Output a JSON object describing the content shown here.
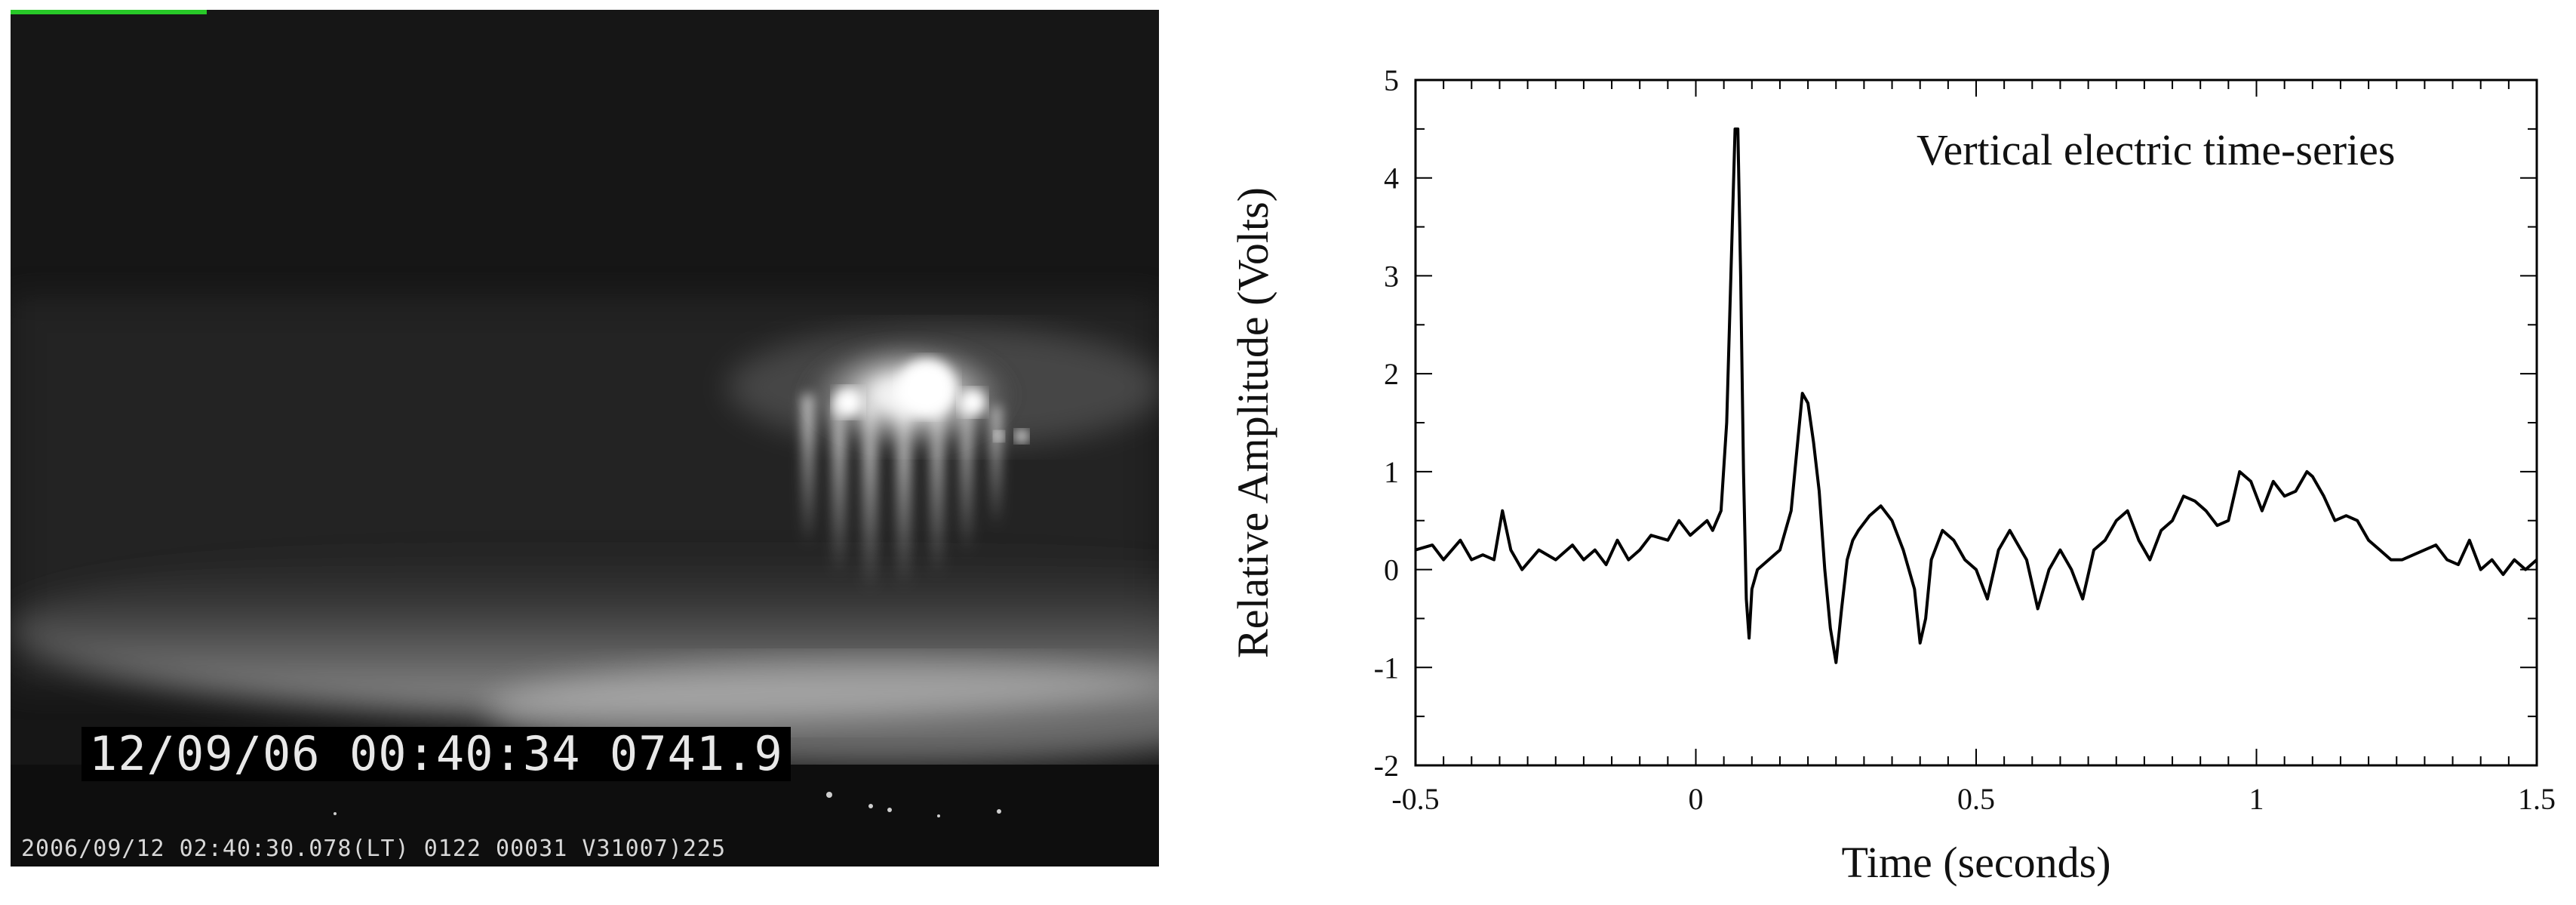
{
  "photo": {
    "overlay_main": "12/09/06 00:40:34 0741.9",
    "overlay_footer": "2006/09/12 02:40:30.078(LT) 0122  00031 V31007)225",
    "colors": {
      "sky": "#151515",
      "sprite": "#ffffff",
      "osd_background": "#000000"
    }
  },
  "chart_data": {
    "type": "line",
    "annotation": "Vertical electric time-series",
    "xlabel": "Time (seconds)",
    "ylabel": "Relative Amplitude (Volts)",
    "xlim": [
      -0.5,
      1.5
    ],
    "ylim": [
      -2,
      5
    ],
    "xticks": [
      "-0.5",
      "0",
      "0.5",
      "1",
      "1.5"
    ],
    "yticks": [
      "-2",
      "-1",
      "0",
      "1",
      "2",
      "3",
      "4",
      "5"
    ],
    "grid": false,
    "line_color": "#000000",
    "series": [
      {
        "x": [
          -0.5,
          -0.47,
          -0.45,
          -0.42,
          -0.4,
          -0.38,
          -0.36,
          -0.345,
          -0.33,
          -0.31,
          -0.28,
          -0.25,
          -0.22,
          -0.2,
          -0.18,
          -0.16,
          -0.14,
          -0.12,
          -0.1,
          -0.08,
          -0.05,
          -0.03,
          -0.01,
          0.0,
          0.02,
          0.03,
          0.045,
          0.055,
          0.065,
          0.07,
          0.075,
          0.08,
          0.085,
          0.09,
          0.095,
          0.1,
          0.11,
          0.13,
          0.15,
          0.17,
          0.18,
          0.19,
          0.2,
          0.21,
          0.22,
          0.23,
          0.24,
          0.25,
          0.26,
          0.27,
          0.28,
          0.29,
          0.31,
          0.33,
          0.35,
          0.37,
          0.39,
          0.4,
          0.41,
          0.42,
          0.44,
          0.46,
          0.48,
          0.5,
          0.52,
          0.54,
          0.56,
          0.57,
          0.59,
          0.61,
          0.63,
          0.65,
          0.67,
          0.69,
          0.71,
          0.73,
          0.75,
          0.77,
          0.79,
          0.81,
          0.83,
          0.85,
          0.87,
          0.89,
          0.91,
          0.93,
          0.95,
          0.97,
          0.99,
          1.01,
          1.03,
          1.05,
          1.07,
          1.09,
          1.1,
          1.12,
          1.14,
          1.16,
          1.18,
          1.2,
          1.22,
          1.24,
          1.26,
          1.28,
          1.3,
          1.32,
          1.34,
          1.36,
          1.38,
          1.4,
          1.42,
          1.44,
          1.46,
          1.48,
          1.5
        ],
        "y": [
          0.2,
          0.25,
          0.1,
          0.3,
          0.1,
          0.15,
          0.1,
          0.6,
          0.2,
          0.0,
          0.2,
          0.1,
          0.25,
          0.1,
          0.2,
          0.05,
          0.3,
          0.1,
          0.2,
          0.35,
          0.3,
          0.5,
          0.35,
          0.4,
          0.5,
          0.4,
          0.6,
          1.5,
          3.5,
          4.5,
          4.5,
          3.0,
          1.0,
          -0.3,
          -0.7,
          -0.2,
          0.0,
          0.1,
          0.2,
          0.6,
          1.2,
          1.8,
          1.7,
          1.3,
          0.8,
          0.0,
          -0.6,
          -0.95,
          -0.4,
          0.1,
          0.3,
          0.4,
          0.55,
          0.65,
          0.5,
          0.2,
          -0.2,
          -0.75,
          -0.5,
          0.1,
          0.4,
          0.3,
          0.1,
          0.0,
          -0.3,
          0.2,
          0.4,
          0.3,
          0.1,
          -0.4,
          0.0,
          0.2,
          0.0,
          -0.3,
          0.2,
          0.3,
          0.5,
          0.6,
          0.3,
          0.1,
          0.4,
          0.5,
          0.75,
          0.7,
          0.6,
          0.45,
          0.5,
          1.0,
          0.9,
          0.6,
          0.9,
          0.75,
          0.8,
          1.0,
          0.95,
          0.75,
          0.5,
          0.55,
          0.5,
          0.3,
          0.2,
          0.1,
          0.1,
          0.15,
          0.2,
          0.25,
          0.1,
          0.05,
          0.3,
          0.0,
          0.1,
          -0.05,
          0.1,
          0.0,
          0.1
        ]
      }
    ]
  }
}
